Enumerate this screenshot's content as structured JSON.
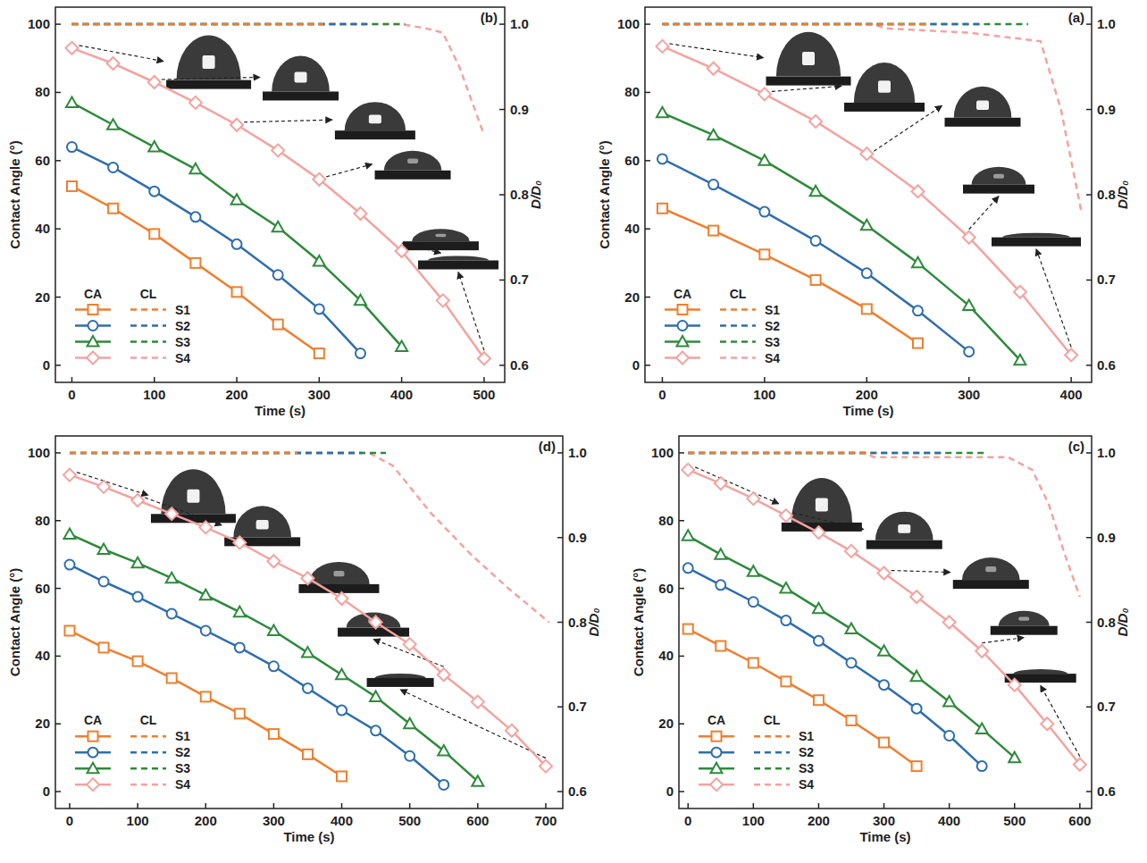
{
  "chart_data": [
    {
      "type": "line",
      "title": "(b)",
      "x_label": "Time (s)",
      "y_label": "Contact Angle (°)",
      "y2_label": "D/D₀",
      "legend_columns": [
        "CA",
        "CL"
      ],
      "legend": "lower left",
      "xlim": [
        -20,
        525
      ],
      "xticks": [
        0,
        100,
        200,
        300,
        400,
        500
      ],
      "ylim": [
        -5,
        105
      ],
      "yticks": [
        0,
        20,
        40,
        60,
        80,
        100
      ],
      "y2lim": [
        0.58,
        1.02
      ],
      "y2ticks": [
        0.6,
        0.7,
        0.8,
        0.9,
        {
          "value": 1,
          "label": "1.0"
        }
      ],
      "series": [
        {
          "name": "S1",
          "color": "#ee7f2f",
          "marker": "square",
          "line_style": "solid",
          "x": [
            0,
            50,
            100,
            150,
            200,
            250,
            300
          ],
          "values": [
            52.5,
            46,
            38.5,
            30,
            21.5,
            12,
            3.5
          ]
        },
        {
          "name": "S2",
          "color": "#2f6eab",
          "marker": "circle",
          "line_style": "solid",
          "x": [
            0,
            50,
            100,
            150,
            200,
            250,
            300,
            350
          ],
          "values": [
            64,
            58,
            51,
            43.5,
            35.5,
            26.5,
            16.5,
            3.5
          ]
        },
        {
          "name": "S3",
          "color": "#2e8a3c",
          "marker": "triangle",
          "line_style": "solid",
          "x": [
            0,
            50,
            100,
            150,
            200,
            250,
            300,
            350,
            400
          ],
          "values": [
            77,
            70.5,
            64,
            57.5,
            48.5,
            40.5,
            30.5,
            19,
            5.5
          ]
        },
        {
          "name": "S4",
          "color": "#f2a3a0",
          "marker": "diamond",
          "line_style": "solid",
          "x": [
            0,
            50,
            100,
            150,
            200,
            250,
            300,
            350,
            400,
            450,
            500
          ],
          "values": [
            93,
            88.5,
            83,
            77,
            70.5,
            63,
            54.5,
            44.5,
            33.5,
            19,
            2
          ]
        },
        {
          "name": "S1",
          "color": "#ee7f2f",
          "axis": "y2",
          "line_style": "dashed",
          "x": [
            0,
            305
          ],
          "values": [
            1,
            1
          ]
        },
        {
          "name": "S2",
          "color": "#2f6eab",
          "axis": "y2",
          "line_style": "dashed",
          "x": [
            0,
            357
          ],
          "values": [
            1,
            1
          ]
        },
        {
          "name": "S3",
          "color": "#2e8a3c",
          "axis": "y2",
          "line_style": "dashed",
          "x": [
            0,
            404
          ],
          "values": [
            1,
            1
          ]
        },
        {
          "name": "S4",
          "color": "#f2a3a0",
          "axis": "y2",
          "line_style": "dashed",
          "x": [
            0,
            400,
            430,
            450,
            470,
            500
          ],
          "values": [
            1,
            1,
            0.995,
            0.99,
            0.95,
            0.87
          ]
        }
      ]
    },
    {
      "type": "line",
      "title": "(a)",
      "x_label": "Time (s)",
      "y_label": "Contact Angle (°)",
      "y2_label": "D/D₀",
      "legend_columns": [
        "CA",
        "CL"
      ],
      "legend": "lower left",
      "xlim": [
        -17,
        420
      ],
      "xticks": [
        0,
        100,
        200,
        300,
        400
      ],
      "ylim": [
        -5,
        105
      ],
      "yticks": [
        0,
        20,
        40,
        60,
        80,
        100
      ],
      "y2lim": [
        0.58,
        1.02
      ],
      "y2ticks": [
        0.6,
        0.7,
        0.8,
        0.9,
        {
          "value": 1,
          "label": "1.0"
        }
      ],
      "series": [
        {
          "name": "S1",
          "color": "#ee7f2f",
          "marker": "square",
          "line_style": "solid",
          "x": [
            0,
            50,
            100,
            150,
            200,
            250
          ],
          "values": [
            46,
            39.5,
            32.5,
            25,
            16.5,
            6.5
          ]
        },
        {
          "name": "S2",
          "color": "#2f6eab",
          "marker": "circle",
          "line_style": "solid",
          "x": [
            0,
            50,
            100,
            150,
            200,
            250,
            300
          ],
          "values": [
            60.5,
            53,
            45,
            36.5,
            27,
            16,
            4
          ]
        },
        {
          "name": "S3",
          "color": "#2e8a3c",
          "marker": "triangle",
          "line_style": "solid",
          "x": [
            0,
            50,
            100,
            150,
            200,
            250,
            300,
            350
          ],
          "values": [
            74,
            67.5,
            60,
            51,
            41,
            30,
            17.5,
            1.5
          ]
        },
        {
          "name": "S4",
          "color": "#f2a3a0",
          "marker": "diamond",
          "line_style": "solid",
          "x": [
            0,
            50,
            100,
            150,
            200,
            250,
            300,
            350,
            400
          ],
          "values": [
            93.5,
            87,
            79.5,
            71.5,
            62,
            51,
            37.5,
            21.5,
            3
          ]
        },
        {
          "name": "S1",
          "color": "#ee7f2f",
          "axis": "y2",
          "line_style": "dashed",
          "x": [
            0,
            262
          ],
          "values": [
            1,
            1
          ]
        },
        {
          "name": "S2",
          "color": "#2f6eab",
          "axis": "y2",
          "line_style": "dashed",
          "x": [
            0,
            314
          ],
          "values": [
            1,
            1
          ]
        },
        {
          "name": "S3",
          "color": "#2e8a3c",
          "axis": "y2",
          "line_style": "dashed",
          "x": [
            0,
            358
          ],
          "values": [
            1,
            1
          ]
        },
        {
          "name": "S4",
          "color": "#f2a3a0",
          "axis": "y2",
          "line_style": "dashed",
          "x": [
            0,
            205,
            220,
            300,
            370,
            390,
            410
          ],
          "values": [
            1,
            1,
            0.995,
            0.99,
            0.98,
            0.9,
            0.78
          ]
        }
      ]
    },
    {
      "type": "line",
      "title": "(d)",
      "x_label": "Time (s)",
      "y_label": "Contact Angle (°)",
      "y2_label": "D/D₀",
      "legend_columns": [
        "CA",
        "CL"
      ],
      "legend": "lower left",
      "xlim": [
        -21,
        725
      ],
      "xticks": [
        0,
        100,
        200,
        300,
        400,
        500,
        600,
        700
      ],
      "ylim": [
        -5,
        105
      ],
      "yticks": [
        0,
        20,
        40,
        60,
        80,
        100
      ],
      "y2lim": [
        0.58,
        1.02
      ],
      "y2ticks": [
        0.6,
        0.7,
        0.8,
        0.9,
        {
          "value": 1,
          "label": "1.0"
        }
      ],
      "series": [
        {
          "name": "S1",
          "color": "#ee7f2f",
          "marker": "square",
          "line_style": "solid",
          "x": [
            0,
            50,
            100,
            150,
            200,
            250,
            300,
            350,
            400
          ],
          "values": [
            47.5,
            42.5,
            38.5,
            33.5,
            28,
            23,
            17,
            11,
            4.5
          ]
        },
        {
          "name": "S2",
          "color": "#2f6eab",
          "marker": "circle",
          "line_style": "solid",
          "x": [
            0,
            50,
            100,
            150,
            200,
            250,
            300,
            350,
            400,
            450,
            500,
            550
          ],
          "values": [
            67,
            62,
            57.5,
            52.5,
            47.5,
            42.5,
            37,
            30.5,
            24,
            18,
            10.5,
            2
          ]
        },
        {
          "name": "S3",
          "color": "#2e8a3c",
          "marker": "triangle",
          "line_style": "solid",
          "x": [
            0,
            50,
            100,
            150,
            200,
            250,
            300,
            350,
            400,
            450,
            500,
            550,
            600
          ],
          "values": [
            76,
            71.5,
            67.5,
            63,
            58,
            53,
            47.5,
            41,
            34.5,
            28,
            20,
            12,
            3
          ]
        },
        {
          "name": "S4",
          "color": "#f2a3a0",
          "marker": "diamond",
          "line_style": "solid",
          "x": [
            0,
            50,
            100,
            150,
            200,
            250,
            300,
            350,
            400,
            450,
            500,
            550,
            600,
            650,
            700
          ],
          "values": [
            93.5,
            90,
            86,
            82,
            78,
            73.5,
            68,
            63,
            57,
            50,
            43.5,
            34.5,
            26.5,
            18,
            7.5
          ]
        },
        {
          "name": "S1",
          "color": "#ee7f2f",
          "axis": "y2",
          "line_style": "dashed",
          "x": [
            0,
            335
          ],
          "values": [
            1,
            1
          ]
        },
        {
          "name": "S2",
          "color": "#2f6eab",
          "axis": "y2",
          "line_style": "dashed",
          "x": [
            0,
            430
          ],
          "values": [
            1,
            1
          ]
        },
        {
          "name": "S3",
          "color": "#2e8a3c",
          "axis": "y2",
          "line_style": "dashed",
          "x": [
            0,
            465
          ],
          "values": [
            1,
            1
          ]
        },
        {
          "name": "S4",
          "color": "#f2a3a0",
          "axis": "y2",
          "line_style": "dashed",
          "x": [
            0,
            440,
            475,
            530,
            590,
            645,
            705
          ],
          "values": [
            1,
            1,
            0.985,
            0.93,
            0.88,
            0.84,
            0.8
          ]
        }
      ]
    },
    {
      "type": "line",
      "title": "(c)",
      "x_label": "Time (s)",
      "y_label": "Contact Angle (°)",
      "y2_label": "D/D₀",
      "legend_columns": [
        "CA",
        "CL"
      ],
      "legend": "lower left",
      "xlim": [
        -14,
        618
      ],
      "xticks": [
        0,
        100,
        200,
        300,
        400,
        500,
        600
      ],
      "ylim": [
        -5,
        105
      ],
      "yticks": [
        0,
        20,
        40,
        60,
        80,
        100
      ],
      "y2lim": [
        0.58,
        1.02
      ],
      "y2ticks": [
        0.6,
        0.7,
        0.8,
        0.9,
        {
          "value": 1,
          "label": "1.0"
        }
      ],
      "series": [
        {
          "name": "S1",
          "color": "#ee7f2f",
          "marker": "square",
          "line_style": "solid",
          "x": [
            0,
            50,
            100,
            150,
            200,
            250,
            300,
            350
          ],
          "values": [
            48,
            43,
            38,
            32.5,
            27,
            21,
            14.5,
            7.5
          ]
        },
        {
          "name": "S2",
          "color": "#2f6eab",
          "marker": "circle",
          "line_style": "solid",
          "x": [
            0,
            50,
            100,
            150,
            200,
            250,
            300,
            350,
            400,
            450
          ],
          "values": [
            66,
            61,
            56,
            50.5,
            44.5,
            38,
            31.5,
            24.5,
            16.5,
            7.5
          ]
        },
        {
          "name": "S3",
          "color": "#2e8a3c",
          "marker": "triangle",
          "line_style": "solid",
          "x": [
            0,
            50,
            100,
            150,
            200,
            250,
            300,
            350,
            400,
            450,
            500
          ],
          "values": [
            75.5,
            70,
            65,
            60,
            54,
            48,
            41.5,
            34,
            26.5,
            18.5,
            10
          ]
        },
        {
          "name": "S4",
          "color": "#f2a3a0",
          "marker": "diamond",
          "line_style": "solid",
          "x": [
            0,
            50,
            100,
            150,
            200,
            250,
            300,
            350,
            400,
            450,
            500,
            550,
            600
          ],
          "values": [
            95,
            91,
            86.5,
            81.5,
            76.5,
            71,
            64.5,
            57.5,
            50,
            41.5,
            31.5,
            20,
            8
          ]
        },
        {
          "name": "S1",
          "color": "#ee7f2f",
          "axis": "y2",
          "line_style": "dashed",
          "x": [
            0,
            280
          ],
          "values": [
            1,
            1
          ]
        },
        {
          "name": "S2",
          "color": "#2f6eab",
          "axis": "y2",
          "line_style": "dashed",
          "x": [
            0,
            388
          ],
          "values": [
            1,
            1
          ]
        },
        {
          "name": "S3",
          "color": "#2e8a3c",
          "axis": "y2",
          "line_style": "dashed",
          "x": [
            0,
            457
          ],
          "values": [
            1,
            1
          ]
        },
        {
          "name": "S4",
          "color": "#f2a3a0",
          "axis": "y2",
          "line_style": "dashed",
          "x": [
            0,
            270,
            285,
            490,
            527,
            552,
            577,
            600
          ],
          "values": [
            1,
            1,
            0.995,
            0.995,
            0.98,
            0.94,
            0.88,
            0.83
          ]
        }
      ]
    }
  ]
}
